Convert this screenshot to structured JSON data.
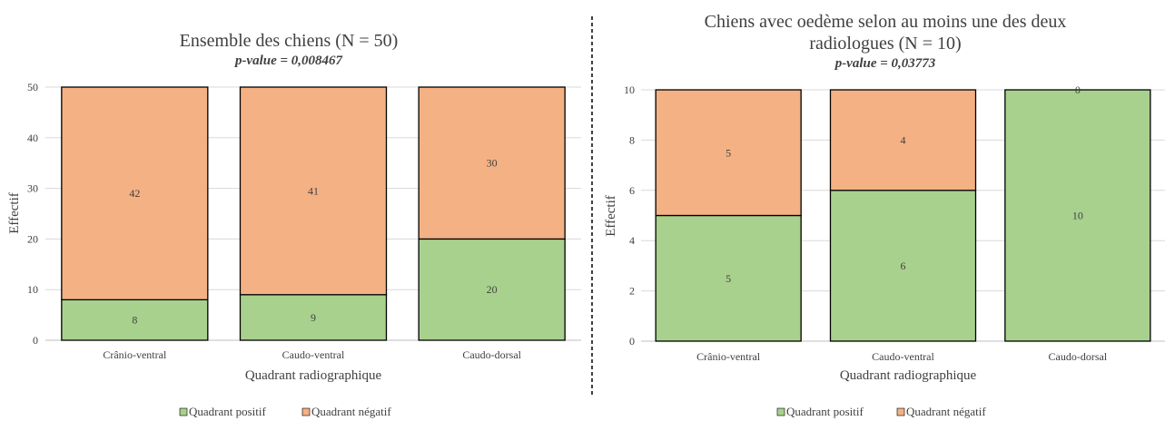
{
  "chart_data": [
    {
      "type": "bar",
      "stacked": true,
      "title": "Ensemble des chiens (N = 50)",
      "subtitle": "p-value = 0,008467",
      "xlabel": "Quadrant radiographique",
      "ylabel": "Effectif",
      "ylim": [
        0,
        50
      ],
      "yticks": [
        0,
        10,
        20,
        30,
        40,
        50
      ],
      "categories": [
        "Crânio-ventral",
        "Caudo-ventral",
        "Caudo-dorsal"
      ],
      "series": [
        {
          "name": "Quadrant positif",
          "values": [
            8,
            9,
            20
          ],
          "color": "#a9d18e"
        },
        {
          "name": "Quadrant négatif",
          "values": [
            42,
            41,
            30
          ],
          "color": "#f4b183"
        }
      ],
      "grid": true,
      "legend": "bottom"
    },
    {
      "type": "bar",
      "stacked": true,
      "title": "Chiens avec oedème selon au moins une des deux",
      "title_line2": "radiologues (N = 10)",
      "subtitle": "p-value = 0,03773",
      "xlabel": "Quadrant radiographique",
      "ylabel": "Effectif",
      "ylim": [
        0,
        10
      ],
      "yticks": [
        0,
        2,
        4,
        6,
        8,
        10
      ],
      "categories": [
        "Crânio-ventral",
        "Caudo-ventral",
        "Caudo-dorsal"
      ],
      "series": [
        {
          "name": "Quadrant positif",
          "values": [
            5,
            6,
            10
          ],
          "color": "#a9d18e"
        },
        {
          "name": "Quadrant négatif",
          "values": [
            5,
            4,
            0
          ],
          "color": "#f4b183"
        }
      ],
      "grid": true,
      "legend": "bottom"
    }
  ]
}
